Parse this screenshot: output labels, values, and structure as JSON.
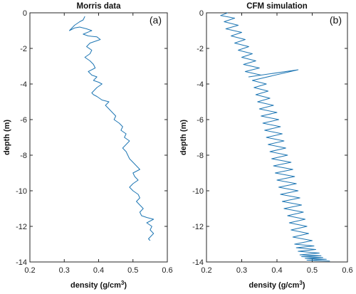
{
  "chart_data": [
    {
      "type": "line",
      "title": "Morris data",
      "panel_label": "(a)",
      "xlabel": "density (g/cm",
      "xlabel_sup": "3",
      "xlabel_tail": ")",
      "ylabel": "depth (m)",
      "xlim": [
        0.2,
        0.6
      ],
      "ylim": [
        0,
        14
      ],
      "y_reversed": true,
      "grid": false,
      "xticks": [
        0.2,
        0.3,
        0.4,
        0.5,
        0.6
      ],
      "xtick_labels": [
        "0.2",
        "0.3",
        "0.4",
        "0.5",
        "0.6"
      ],
      "yticks": [
        0,
        2,
        4,
        6,
        8,
        10,
        12,
        14
      ],
      "ytick_labels": [
        "0",
        "-2",
        "-4",
        "-6",
        "-8",
        "-10",
        "-12",
        "-14"
      ],
      "series": [
        {
          "color": "#1f77b4",
          "x": [
            0.36,
            0.355,
            0.345,
            0.33,
            0.325,
            0.32,
            0.315,
            0.33,
            0.345,
            0.365,
            0.38,
            0.355,
            0.37,
            0.395,
            0.405,
            0.375,
            0.365,
            0.38,
            0.375,
            0.36,
            0.375,
            0.385,
            0.39,
            0.37,
            0.38,
            0.395,
            0.385,
            0.4,
            0.41,
            0.395,
            0.385,
            0.38,
            0.385,
            0.395,
            0.41,
            0.43,
            0.42,
            0.43,
            0.44,
            0.45,
            0.445,
            0.46,
            0.47,
            0.465,
            0.48,
            0.475,
            0.49,
            0.48,
            0.47,
            0.48,
            0.485,
            0.49,
            0.5,
            0.51,
            0.52,
            0.5,
            0.505,
            0.515,
            0.5,
            0.49,
            0.5,
            0.515,
            0.52,
            0.51,
            0.52,
            0.53,
            0.52,
            0.525,
            0.54,
            0.56,
            0.54,
            0.555,
            0.55,
            0.56,
            0.55,
            0.545,
            0.55
          ],
          "y": [
            0.2,
            0.4,
            0.5,
            0.7,
            0.8,
            0.9,
            1.0,
            0.85,
            0.8,
            0.9,
            1.0,
            1.2,
            1.3,
            1.35,
            1.5,
            1.7,
            1.9,
            2.1,
            2.3,
            2.5,
            2.7,
            2.9,
            3.1,
            3.3,
            3.5,
            3.6,
            3.8,
            3.9,
            4.0,
            4.2,
            4.4,
            4.5,
            4.6,
            4.7,
            4.9,
            5.0,
            5.2,
            5.4,
            5.6,
            5.8,
            6.0,
            6.2,
            6.4,
            6.6,
            6.8,
            7.0,
            7.2,
            7.4,
            7.6,
            7.8,
            8.0,
            8.2,
            8.4,
            8.6,
            8.8,
            9.0,
            9.2,
            9.4,
            9.6,
            9.8,
            10.0,
            10.2,
            10.4,
            10.6,
            10.8,
            11.0,
            11.2,
            11.4,
            11.5,
            11.6,
            11.8,
            12.0,
            12.2,
            12.4,
            12.6,
            12.7,
            12.8
          ]
        }
      ]
    },
    {
      "type": "line",
      "title": "CFM simulation",
      "panel_label": "(b)",
      "xlabel": "density (g/cm",
      "xlabel_sup": "3",
      "xlabel_tail": ")",
      "ylabel": "depth (m)",
      "xlim": [
        0.2,
        0.6
      ],
      "ylim": [
        0,
        14
      ],
      "y_reversed": true,
      "grid": false,
      "xticks": [
        0.2,
        0.3,
        0.4,
        0.5,
        0.6
      ],
      "xtick_labels": [
        "0.2",
        "0.3",
        "0.4",
        "0.5",
        "0.6"
      ],
      "yticks": [
        0,
        2,
        4,
        6,
        8,
        10,
        12,
        14
      ],
      "ytick_labels": [
        "0",
        "-2",
        "-4",
        "-6",
        "-8",
        "-10",
        "-12",
        "-14"
      ],
      "series": [
        {
          "color": "#1f77b4",
          "x": [
            0.26,
            0.24,
            0.28,
            0.25,
            0.29,
            0.255,
            0.3,
            0.27,
            0.31,
            0.28,
            0.32,
            0.29,
            0.33,
            0.3,
            0.34,
            0.305,
            0.35,
            0.31,
            0.355,
            0.32,
            0.46,
            0.33,
            0.37,
            0.335,
            0.375,
            0.34,
            0.38,
            0.345,
            0.39,
            0.35,
            0.4,
            0.355,
            0.405,
            0.36,
            0.41,
            0.365,
            0.415,
            0.37,
            0.42,
            0.375,
            0.425,
            0.38,
            0.43,
            0.385,
            0.44,
            0.39,
            0.445,
            0.395,
            0.45,
            0.4,
            0.455,
            0.405,
            0.46,
            0.41,
            0.465,
            0.415,
            0.47,
            0.42,
            0.475,
            0.43,
            0.48,
            0.435,
            0.485,
            0.44,
            0.49,
            0.445,
            0.5,
            0.45,
            0.505,
            0.455,
            0.51,
            0.46,
            0.52,
            0.465,
            0.525,
            0.47,
            0.53,
            0.48,
            0.54,
            0.485,
            0.55
          ],
          "y": [
            0.0,
            0.15,
            0.3,
            0.5,
            0.7,
            0.9,
            1.1,
            1.3,
            1.5,
            1.7,
            1.9,
            2.1,
            2.3,
            2.5,
            2.7,
            2.9,
            3.1,
            3.3,
            3.5,
            3.6,
            3.2,
            3.8,
            4.0,
            4.2,
            4.4,
            4.6,
            4.8,
            5.0,
            5.2,
            5.4,
            5.6,
            5.8,
            6.0,
            6.2,
            6.4,
            6.6,
            6.8,
            7.0,
            7.2,
            7.4,
            7.6,
            7.8,
            8.0,
            8.2,
            8.4,
            8.6,
            8.8,
            9.0,
            9.2,
            9.4,
            9.6,
            9.8,
            10.0,
            10.2,
            10.4,
            10.6,
            10.8,
            11.0,
            11.2,
            11.4,
            11.6,
            11.8,
            12.0,
            12.2,
            12.4,
            12.6,
            12.8,
            13.0,
            13.1,
            13.2,
            13.3,
            13.4,
            13.5,
            13.6,
            13.65,
            13.7,
            13.75,
            13.8,
            13.85,
            13.9,
            13.95
          ]
        }
      ]
    }
  ]
}
